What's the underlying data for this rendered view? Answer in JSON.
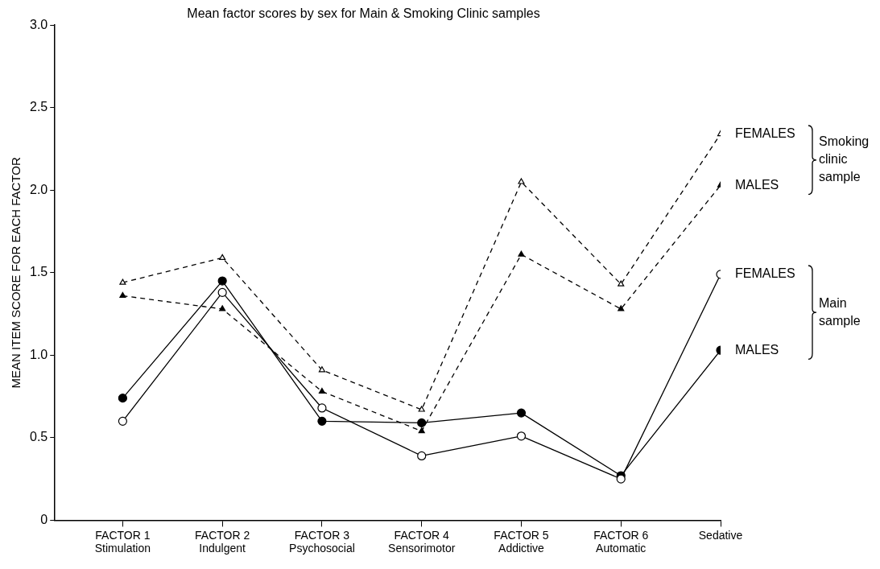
{
  "chart_data": {
    "type": "line",
    "title": "Mean factor scores by sex for Main & Smoking Clinic samples",
    "ylabel": "MEAN ITEM SCORE FOR EACH FACTOR",
    "categories": [
      "FACTOR 1\nStimulation",
      "FACTOR 2\nIndulgent",
      "FACTOR 3\nPsychosocial",
      "FACTOR 4\nSensorimotor",
      "FACTOR 5\nAddictive",
      "FACTOR 6\nAutomatic",
      "Sedative"
    ],
    "series": [
      {
        "name": "FEMALES",
        "color": "#000000",
        "marker": "triangle",
        "colors": [
          "#ffffff",
          "#ffffff",
          "#ffffff",
          "#ffffff",
          "#ffffff",
          "#ffffff",
          "#ffffff"
        ],
        "line_style": "dashed",
        "values": [
          1.44,
          1.59,
          0.91,
          0.67,
          2.05,
          1.43,
          2.34
        ]
      },
      {
        "name": "MALES",
        "color": "#000000",
        "marker": "triangle",
        "colors": [
          "#000000",
          "#000000",
          "#000000",
          "#000000",
          "#000000",
          "#000000",
          "#000000"
        ],
        "line_style": "dashed",
        "values": [
          1.36,
          1.28,
          0.78,
          0.54,
          1.61,
          1.28,
          2.03
        ]
      },
      {
        "name": "FEMALES",
        "color": "#000000",
        "marker": "circle",
        "colors": [
          "#ffffff",
          "#ffffff",
          "#ffffff",
          "#ffffff",
          "#ffffff",
          "#ffffff",
          "#ffffff"
        ],
        "line_style": "solid",
        "values": [
          0.6,
          1.38,
          0.68,
          0.39,
          0.51,
          0.25,
          1.49
        ]
      },
      {
        "name": "MALES",
        "color": "#000000",
        "marker": "circle",
        "colors": [
          "#000000",
          "#000000",
          "#000000",
          "#000000",
          "#000000",
          "#000000",
          "#000000"
        ],
        "line_style": "solid",
        "values": [
          0.74,
          1.45,
          0.6,
          0.59,
          0.65,
          0.27,
          1.03
        ]
      }
    ],
    "annotations": [
      "Smoking clinic sample",
      "Main sample"
    ],
    "ylim": [
      0,
      3
    ],
    "yticks": [
      {
        "value": 0,
        "label": "0"
      },
      {
        "value": 0.5,
        "label": "0.5"
      },
      {
        "value": 1,
        "label": "1.0"
      },
      {
        "value": 1.5,
        "label": "1.5"
      },
      {
        "value": 2,
        "label": "2.0"
      },
      {
        "value": 2.5,
        "label": "2.5"
      },
      {
        "value": 3,
        "label": "3.0"
      }
    ],
    "grid": false,
    "legend": false
  }
}
